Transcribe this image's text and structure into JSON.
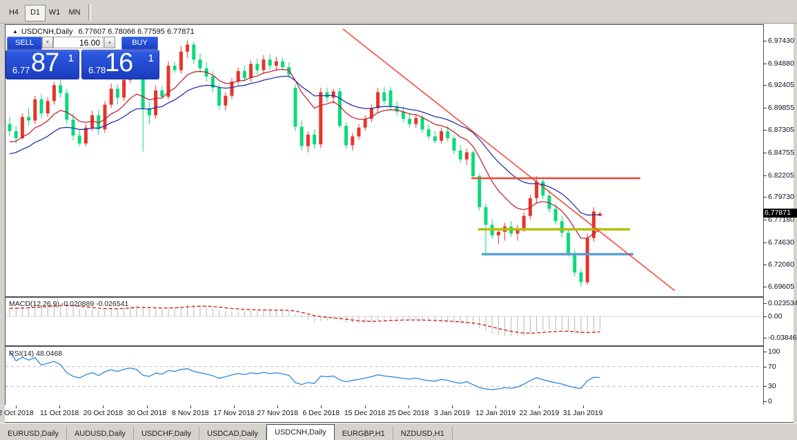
{
  "toolbar": {
    "timeframes": [
      "H4",
      "D1",
      "W1",
      "MN"
    ],
    "active": "D1"
  },
  "chart_header": {
    "collapse_icon": "▲",
    "symbol_label": "USDCNH,Daily",
    "ohlc_text": "6.77607 6.78066 6.77595 6.77871"
  },
  "trade_panel": {
    "sell_label": "SELL",
    "buy_label": "BUY",
    "volume": "16.00",
    "spinner_down": "▼",
    "spinner_up": "▲",
    "sell_price": {
      "small": "6.77",
      "big": "87",
      "sup": "1"
    },
    "buy_price": {
      "small": "6.78",
      "big": "16",
      "sup": "1"
    }
  },
  "price_axis": {
    "labels": [
      "6.97430",
      "6.94880",
      "6.92405",
      "6.89855",
      "6.87305",
      "6.84755",
      "6.82205",
      "6.79730",
      "6.77180",
      "6.74630",
      "6.72080",
      "6.69605"
    ],
    "current_tag": "6.77871"
  },
  "macd_panel": {
    "name": "MACD(12,26,9)",
    "value_main": "-0.020889",
    "value_signal": "-0.026541",
    "axis_labels": [
      "0.023534",
      "0.00",
      "-0.038466"
    ]
  },
  "rsi_panel": {
    "name": "RSI(14)",
    "value": "48.0468",
    "axis_labels": [
      "100",
      "70",
      "30",
      "0"
    ],
    "levels": [
      70,
      30
    ]
  },
  "date_axis": {
    "labels": [
      "2 Oct 2018",
      "11 Oct 2018",
      "20 Oct 2018",
      "30 Oct 2018",
      "8 Nov 2018",
      "17 Nov 2018",
      "27 Nov 2018",
      "6 Dec 2018",
      "15 Dec 2018",
      "25 Dec 2018",
      "3 Jan 2019",
      "12 Jan 2019",
      "22 Jan 2019",
      "31 Jan 2019"
    ]
  },
  "bottom_tabs": {
    "tabs": [
      "EURUSD,Daily",
      "AUDUSD,Daily",
      "USDCHF,Daily",
      "USDCAD,Daily",
      "USDCNH,Daily",
      "EURGBP,H1",
      "NZDUSD,H1"
    ],
    "active_index": 4
  },
  "chart_data": {
    "type": "candlestick",
    "symbol": "USDCNH",
    "timeframe": "Daily",
    "title": "USDCNH,Daily",
    "last": {
      "open": 6.77607,
      "high": 6.78066,
      "low": 6.77595,
      "close": 6.77871
    },
    "ylim": [
      6.69605,
      6.9743
    ],
    "grid": false,
    "colors": {
      "up": "#e8342a",
      "down": "#0bd97b",
      "ma_fast": "#c22438",
      "ma_slow": "#2530aa",
      "object_red": "#fa4030",
      "hline_olive": "#b3bd08",
      "hline_blue": "#58a0d8",
      "macd_bar": "#b6b6b6",
      "macd_signal": "#cc1515",
      "rsi_line": "#2c87dd",
      "panel_blue": "#2450d8",
      "tag_bg": "#000000"
    },
    "candles": [
      [
        6.88,
        6.888,
        6.866,
        6.872
      ],
      [
        6.872,
        6.878,
        6.858,
        6.864
      ],
      [
        6.864,
        6.892,
        6.862,
        6.888
      ],
      [
        6.888,
        6.898,
        6.878,
        6.884
      ],
      [
        6.884,
        6.912,
        6.88,
        6.908
      ],
      [
        6.908,
        6.914,
        6.886,
        6.892
      ],
      [
        6.892,
        6.91,
        6.888,
        6.906
      ],
      [
        6.906,
        6.928,
        6.902,
        6.924
      ],
      [
        6.924,
        6.93,
        6.91,
        6.915
      ],
      [
        6.915,
        6.92,
        6.88,
        6.885
      ],
      [
        6.885,
        6.892,
        6.862,
        6.867
      ],
      [
        6.867,
        6.874,
        6.855,
        6.858
      ],
      [
        6.858,
        6.88,
        6.855,
        6.876
      ],
      [
        6.876,
        6.895,
        6.872,
        6.89
      ],
      [
        6.89,
        6.896,
        6.868,
        6.874
      ],
      [
        6.874,
        6.906,
        6.87,
        6.902
      ],
      [
        6.902,
        6.926,
        6.898,
        6.92
      ],
      [
        6.92,
        6.925,
        6.902,
        6.91
      ],
      [
        6.91,
        6.936,
        6.906,
        6.93
      ],
      [
        6.93,
        6.95,
        6.926,
        6.944
      ],
      [
        6.944,
        6.952,
        6.93,
        6.936
      ],
      [
        6.936,
        6.94,
        6.849,
        6.898
      ],
      [
        6.898,
        6.905,
        6.88,
        6.89
      ],
      [
        6.89,
        6.924,
        6.886,
        6.918
      ],
      [
        6.918,
        6.923,
        6.908,
        6.911
      ],
      [
        6.911,
        6.951,
        6.908,
        6.946
      ],
      [
        6.946,
        6.95,
        6.938,
        6.941
      ],
      [
        6.941,
        6.968,
        6.937,
        6.962
      ],
      [
        6.962,
        6.9745,
        6.955,
        6.97
      ],
      [
        6.97,
        6.9735,
        6.948,
        6.953
      ],
      [
        6.953,
        6.96,
        6.938,
        6.943
      ],
      [
        6.943,
        6.95,
        6.928,
        6.934
      ],
      [
        6.934,
        6.94,
        6.916,
        6.921
      ],
      [
        6.921,
        6.926,
        6.896,
        6.901
      ],
      [
        6.901,
        6.916,
        6.895,
        6.912
      ],
      [
        6.912,
        6.932,
        6.908,
        6.928
      ],
      [
        6.928,
        6.944,
        6.924,
        6.94
      ],
      [
        6.94,
        6.946,
        6.928,
        6.932
      ],
      [
        6.932,
        6.952,
        6.928,
        6.948
      ],
      [
        6.948,
        6.954,
        6.936,
        6.941
      ],
      [
        6.941,
        6.958,
        6.937,
        6.953
      ],
      [
        6.953,
        6.959,
        6.941,
        6.946
      ],
      [
        6.946,
        6.956,
        6.94,
        6.951
      ],
      [
        6.951,
        6.9555,
        6.9405,
        6.9445
      ],
      [
        6.9445,
        6.95,
        6.932,
        6.936
      ],
      [
        6.921,
        6.925,
        6.872,
        6.877
      ],
      [
        6.877,
        6.884,
        6.85,
        6.855
      ],
      [
        6.855,
        6.872,
        6.848,
        6.868
      ],
      [
        6.868,
        6.874,
        6.852,
        6.857
      ],
      [
        6.857,
        6.921,
        6.853,
        6.916
      ],
      [
        6.916,
        6.9215,
        6.905,
        6.91
      ],
      [
        6.91,
        6.92,
        6.903,
        6.917
      ],
      [
        6.917,
        6.921,
        6.875,
        6.878
      ],
      [
        6.878,
        6.882,
        6.852,
        6.856
      ],
      [
        6.856,
        6.87,
        6.85,
        6.866
      ],
      [
        6.866,
        6.88,
        6.862,
        6.876
      ],
      [
        6.876,
        6.89,
        6.872,
        6.886
      ],
      [
        6.886,
        6.902,
        6.882,
        6.898
      ],
      [
        6.898,
        6.921,
        6.892,
        6.916
      ],
      [
        6.916,
        6.922,
        6.902,
        6.906
      ],
      [
        6.918,
        6.922,
        6.896,
        6.9
      ],
      [
        6.9,
        6.906,
        6.89,
        6.894
      ],
      [
        6.894,
        6.9,
        6.882,
        6.886
      ],
      [
        6.886,
        6.893,
        6.876,
        6.88
      ],
      [
        6.88,
        6.89,
        6.876,
        6.887
      ],
      [
        6.887,
        6.891,
        6.87,
        6.874
      ],
      [
        6.874,
        6.88,
        6.862,
        6.866
      ],
      [
        6.866,
        6.872,
        6.858,
        6.861
      ],
      [
        6.861,
        6.876,
        6.858,
        6.872
      ],
      [
        6.872,
        6.878,
        6.86,
        6.864
      ],
      [
        6.864,
        6.868,
        6.846,
        6.85
      ],
      [
        6.85,
        6.856,
        6.836,
        6.84
      ],
      [
        6.84,
        6.852,
        6.834,
        6.848
      ],
      [
        6.848,
        6.85,
        6.818,
        6.821
      ],
      [
        6.821,
        6.824,
        6.782,
        6.786
      ],
      [
        6.786,
        6.79,
        6.731,
        6.766
      ],
      [
        6.766,
        6.772,
        6.75,
        6.754
      ],
      [
        6.754,
        6.762,
        6.744,
        6.758
      ],
      [
        6.758,
        6.768,
        6.748,
        6.764
      ],
      [
        6.764,
        6.77,
        6.752,
        6.756
      ],
      [
        6.756,
        6.766,
        6.748,
        6.762
      ],
      [
        6.762,
        6.78,
        6.758,
        6.776
      ],
      [
        6.776,
        6.8,
        6.772,
        6.796
      ],
      [
        6.796,
        6.821,
        6.79,
        6.815
      ],
      [
        6.815,
        6.819,
        6.795,
        6.799
      ],
      [
        6.799,
        6.805,
        6.78,
        6.784
      ],
      [
        6.784,
        6.79,
        6.766,
        6.77
      ],
      [
        6.77,
        6.776,
        6.752,
        6.757
      ],
      [
        6.757,
        6.762,
        6.73,
        6.734
      ],
      [
        6.734,
        6.738,
        6.708,
        6.712
      ],
      [
        6.712,
        6.716,
        6.696,
        6.701
      ],
      [
        6.701,
        6.756,
        6.698,
        6.751
      ],
      [
        6.751,
        6.786,
        6.747,
        6.781
      ],
      [
        6.77607,
        6.78066,
        6.77595,
        6.77871
      ]
    ],
    "objects": {
      "trendline": {
        "x1_local": 489,
        "price1": 6.9876,
        "x2_local": 970,
        "price2": 6.6913
      },
      "hlines": [
        {
          "price": 6.8187,
          "x1_local": 675,
          "x2_local": 920,
          "color_key": "object_red",
          "width": 2.5
        },
        {
          "price": 6.7609,
          "x1_local": 685,
          "x2_local": 905,
          "color_key": "hline_olive",
          "width": 3.5
        },
        {
          "price": 6.7327,
          "x1_local": 690,
          "x2_local": 910,
          "color_key": "hline_blue",
          "width": 3.5
        }
      ]
    }
  }
}
